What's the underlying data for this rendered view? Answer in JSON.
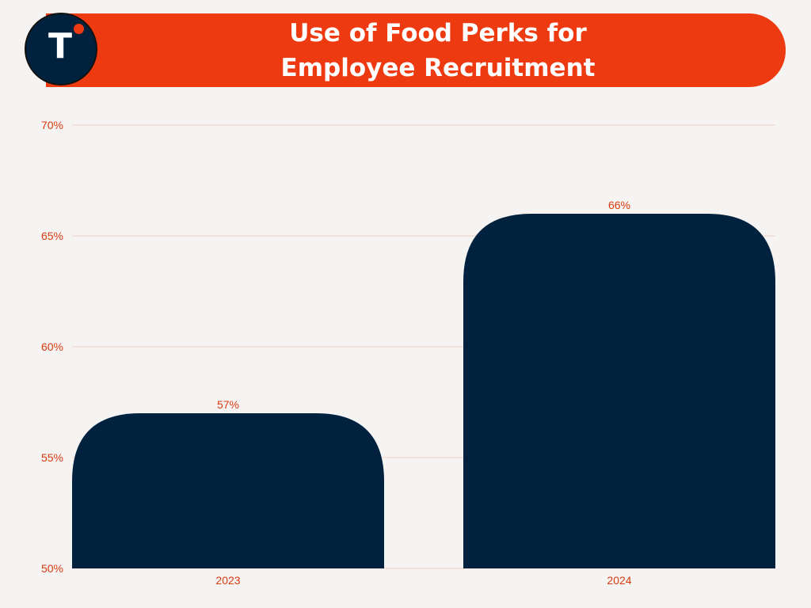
{
  "header": {
    "logo_letter": "T",
    "title_line1": "Use of Food Perks for",
    "title_line2": "Employee Recruitment"
  },
  "colors": {
    "accent": "#ee3a11",
    "bar": "#01223e",
    "label": "#d9390f",
    "background": "#f5f4f3",
    "gridline": "#f6cfc4"
  },
  "chart_data": {
    "type": "bar",
    "title": "Use of Food Perks for Employee Recruitment",
    "categories": [
      "2023",
      "2024"
    ],
    "values": [
      57,
      66
    ],
    "value_labels": [
      "57%",
      "66%"
    ],
    "xlabel": "",
    "ylabel": "",
    "ylim": [
      50,
      70
    ],
    "yticks": [
      50,
      55,
      60,
      65,
      70
    ],
    "ytick_labels": [
      "50%",
      "55%",
      "60%",
      "65%",
      "70%"
    ],
    "grid": true,
    "legend": "none"
  }
}
